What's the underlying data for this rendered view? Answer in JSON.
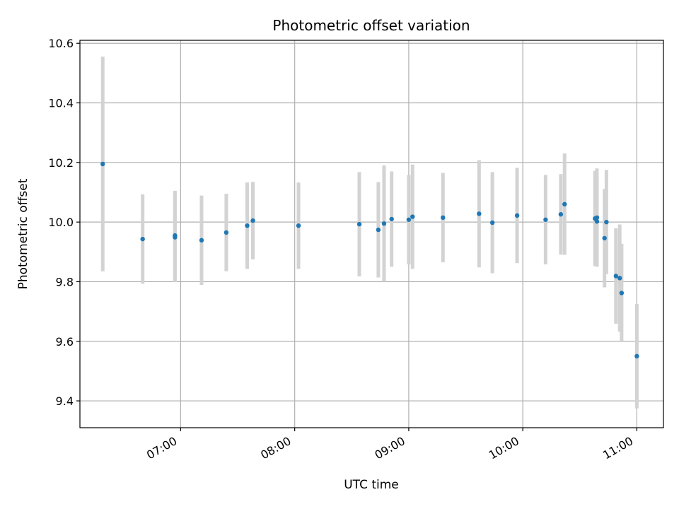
{
  "chart_data": {
    "type": "scatter",
    "title": "Photometric offset variation",
    "xlabel": "UTC time",
    "ylabel": "Photometric offset",
    "x_axis_type": "time",
    "xlim": [
      "06:07",
      "11:14"
    ],
    "ylim": [
      9.31,
      10.61
    ],
    "x_ticks": [
      "07:00",
      "08:00",
      "09:00",
      "10:00",
      "11:00"
    ],
    "y_ticks": [
      9.4,
      9.6,
      9.8,
      10.0,
      10.2,
      10.4,
      10.6
    ],
    "y_tick_labels": [
      "9.4",
      "9.6",
      "9.8",
      "10.0",
      "10.2",
      "10.4",
      "10.6"
    ],
    "grid": true,
    "legend": "none",
    "colors": {
      "point": "#1f77b4",
      "error_bar": "#d3d3d3",
      "grid": "#b0b0b0"
    },
    "series": [
      {
        "x": [
          "06:19",
          "06:40",
          "06:57",
          "06:57",
          "07:11",
          "07:24",
          "07:35",
          "07:38",
          "08:02",
          "08:34",
          "08:44",
          "08:47",
          "08:51",
          "09:00",
          "09:02",
          "09:18",
          "09:37",
          "09:44",
          "09:57",
          "10:12",
          "10:20",
          "10:22",
          "10:38",
          "10:39",
          "10:39",
          "10:43",
          "10:44",
          "10:49",
          "10:51",
          "10:52",
          "11:00"
        ],
        "y": [
          10.195,
          9.943,
          9.949,
          9.955,
          9.939,
          9.965,
          9.988,
          10.005,
          9.988,
          9.993,
          9.974,
          9.995,
          10.01,
          10.008,
          10.018,
          10.015,
          10.028,
          9.998,
          10.022,
          10.008,
          10.026,
          10.06,
          10.012,
          10.002,
          10.015,
          9.946,
          10.0,
          9.819,
          9.812,
          9.762,
          9.55
        ],
        "yerr": [
          0.36,
          0.15,
          0.15,
          0.15,
          0.15,
          0.13,
          0.145,
          0.13,
          0.145,
          0.175,
          0.16,
          0.195,
          0.16,
          0.15,
          0.175,
          0.15,
          0.18,
          0.17,
          0.16,
          0.15,
          0.135,
          0.17,
          0.16,
          0.15,
          0.165,
          0.165,
          0.175,
          0.16,
          0.18,
          0.165,
          0.175
        ]
      }
    ]
  }
}
